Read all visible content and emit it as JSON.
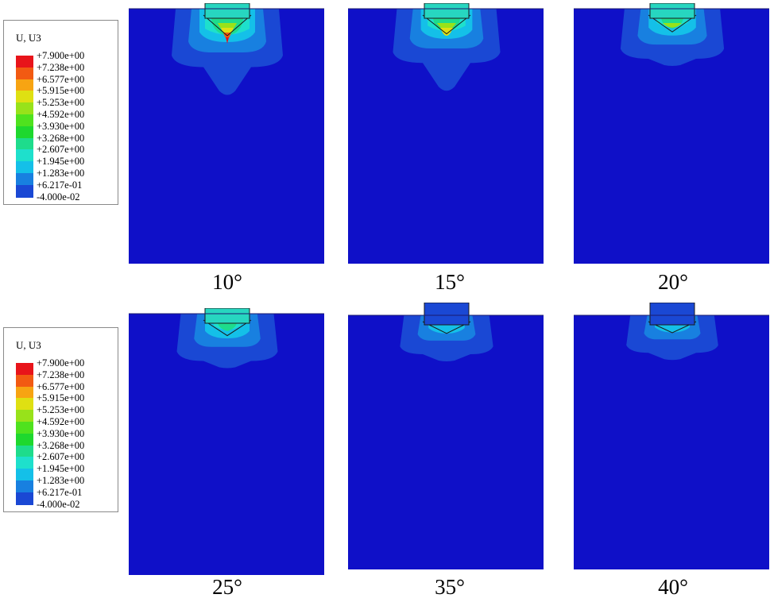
{
  "legends": [
    {
      "title": "U, U3",
      "entries": [
        {
          "value": "+7.900e+00",
          "color": "#e8141a"
        },
        {
          "value": "+7.238e+00",
          "color": "#f25a12"
        },
        {
          "value": "+6.577e+00",
          "color": "#f7a412"
        },
        {
          "value": "+5.915e+00",
          "color": "#dfe012"
        },
        {
          "value": "+5.253e+00",
          "color": "#98e21a"
        },
        {
          "value": "+4.592e+00",
          "color": "#4fe21e"
        },
        {
          "value": "+3.930e+00",
          "color": "#1ed82e"
        },
        {
          "value": "+3.268e+00",
          "color": "#1edc8c"
        },
        {
          "value": "+2.607e+00",
          "color": "#1ee0cc"
        },
        {
          "value": "+1.945e+00",
          "color": "#14c0e8"
        },
        {
          "value": "+1.283e+00",
          "color": "#1880e0"
        },
        {
          "value": "+6.217e-01",
          "color": "#1a48d4"
        },
        {
          "value": "-4.000e-02",
          "color": "#0f10c8"
        }
      ]
    },
    {
      "title": "U, U3",
      "entries": [
        {
          "value": "+7.900e+00",
          "color": "#e8141a"
        },
        {
          "value": "+7.238e+00",
          "color": "#f25a12"
        },
        {
          "value": "+6.577e+00",
          "color": "#f7a412"
        },
        {
          "value": "+5.915e+00",
          "color": "#dfe012"
        },
        {
          "value": "+5.253e+00",
          "color": "#98e21a"
        },
        {
          "value": "+4.592e+00",
          "color": "#4fe21e"
        },
        {
          "value": "+3.930e+00",
          "color": "#1ed82e"
        },
        {
          "value": "+3.268e+00",
          "color": "#1edc8c"
        },
        {
          "value": "+2.607e+00",
          "color": "#1ee0cc"
        },
        {
          "value": "+1.945e+00",
          "color": "#14c0e8"
        },
        {
          "value": "+1.283e+00",
          "color": "#1880e0"
        },
        {
          "value": "+6.217e-01",
          "color": "#1a48d4"
        },
        {
          "value": "-4.000e-02",
          "color": "#0f10c8"
        }
      ]
    }
  ],
  "panels": [
    {
      "caption": "10°",
      "intensity": 1.0,
      "block_color": "#27d6c0"
    },
    {
      "caption": "15°",
      "intensity": 0.85,
      "block_color": "#27d6c0"
    },
    {
      "caption": "20°",
      "intensity": 0.7,
      "block_color": "#27d6c0"
    },
    {
      "caption": "25°",
      "intensity": 0.6,
      "block_color": "#27d6c0"
    },
    {
      "caption": "35°",
      "intensity": 0.3,
      "block_color": "#1a48d4"
    },
    {
      "caption": "40°",
      "intensity": 0.25,
      "block_color": "#1a48d4"
    }
  ],
  "colors": {
    "soil": "#0f10c8",
    "contour_outer": "#1a48d4",
    "contour_mid": "#1880e0",
    "contour_cyan": "#14c0e8",
    "contour_teal": "#1ee0cc",
    "contour_green": "#1edc8c",
    "contour_lime": "#98e21a",
    "contour_yellow": "#dfe012",
    "contour_orange": "#f25a12",
    "contour_red": "#e8141a"
  }
}
